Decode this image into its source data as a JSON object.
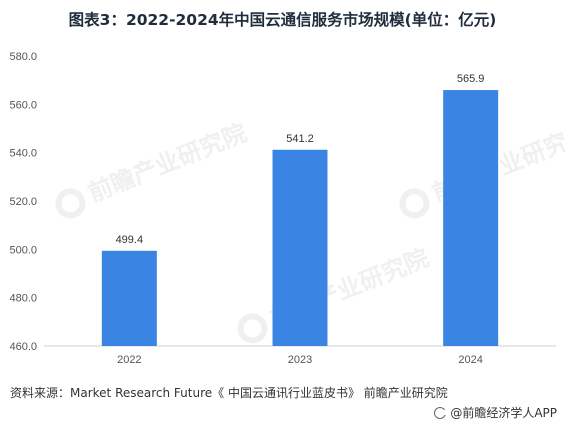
{
  "title": "图表3：2022-2024年中国云通信服务市场规模(单位：亿元)",
  "chart_data": {
    "type": "bar",
    "title": "图表3：2022-2024年中国云通信服务市场规模(单位：亿元)",
    "categories": [
      "2022",
      "2023",
      "2024"
    ],
    "values": [
      499.4,
      541.2,
      565.9
    ],
    "value_labels": [
      "499.4",
      "541.2",
      "565.9"
    ],
    "ylim": [
      460,
      580
    ],
    "yticks": [
      "460.0",
      "480.0",
      "500.0",
      "520.0",
      "540.0",
      "560.0",
      "580.0"
    ],
    "xlabel": "",
    "ylabel": "",
    "bar_color": "#3a84e4",
    "grid": false,
    "legend": "none"
  },
  "source": "资料来源：Market Research Future《 中国云通讯行业蓝皮书》 前瞻产业研究院",
  "brand": "@前瞻经济学人APP",
  "watermark": "前瞻产业研究院"
}
